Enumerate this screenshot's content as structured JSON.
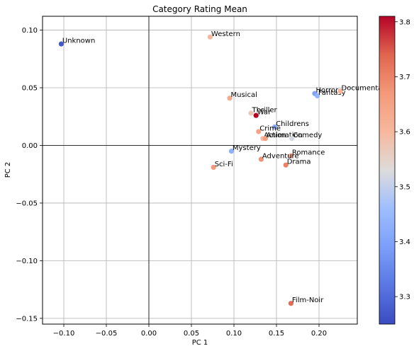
{
  "chart_data": {
    "type": "scatter",
    "title": "Category Rating Mean",
    "xlabel": "PC 1",
    "ylabel": "PC 2",
    "xlim": [
      -0.125,
      0.245
    ],
    "ylim": [
      -0.155,
      0.112
    ],
    "xticks": [
      -0.1,
      -0.05,
      0.0,
      0.05,
      0.1,
      0.15,
      0.2
    ],
    "xtick_labels": [
      "−0.10",
      "−0.05",
      "0.00",
      "0.05",
      "0.10",
      "0.15",
      "0.20"
    ],
    "yticks": [
      0.1,
      0.05,
      0.0,
      -0.05,
      -0.1,
      -0.15
    ],
    "ytick_labels": [
      "0.10",
      "0.05",
      "0.00",
      "−0.05",
      "−0.10",
      "−0.15"
    ],
    "grid": true,
    "colorbar": {
      "colormap": "coolwarm",
      "min": 3.25,
      "max": 3.81,
      "ticks": [
        3.3,
        3.4,
        3.5,
        3.6,
        3.7,
        3.8
      ],
      "tick_labels": [
        "3.3",
        "3.4",
        "3.5",
        "3.6",
        "3.7",
        "3.8"
      ]
    },
    "points": [
      {
        "label": "Unknown",
        "x": -0.103,
        "y": 0.088,
        "value": 3.27
      },
      {
        "label": "Western",
        "x": 0.072,
        "y": 0.094,
        "value": 3.6
      },
      {
        "label": "Musical",
        "x": 0.095,
        "y": 0.041,
        "value": 3.63
      },
      {
        "label": "Thriller",
        "x": 0.12,
        "y": 0.028,
        "value": 3.57
      },
      {
        "label": "War",
        "x": 0.126,
        "y": 0.026,
        "value": 3.81
      },
      {
        "label": "Childrens",
        "x": 0.148,
        "y": 0.016,
        "value": 3.42
      },
      {
        "label": "Crime",
        "x": 0.129,
        "y": 0.012,
        "value": 3.65
      },
      {
        "label": "Action",
        "x": 0.134,
        "y": 0.006,
        "value": 3.59
      },
      {
        "label": "Animation",
        "x": 0.137,
        "y": 0.006,
        "value": 3.66
      },
      {
        "label": "Comedy",
        "x": 0.168,
        "y": 0.006,
        "value": 3.52
      },
      {
        "label": "Horror",
        "x": 0.195,
        "y": 0.045,
        "value": 3.4
      },
      {
        "label": "Fantasy",
        "x": 0.198,
        "y": 0.043,
        "value": 3.44
      },
      {
        "label": "Documentary",
        "x": 0.225,
        "y": 0.047,
        "value": 3.61
      },
      {
        "label": "Mystery",
        "x": 0.097,
        "y": -0.005,
        "value": 3.43
      },
      {
        "label": "Romance",
        "x": 0.167,
        "y": -0.009,
        "value": 3.66
      },
      {
        "label": "Adventure",
        "x": 0.132,
        "y": -0.012,
        "value": 3.68
      },
      {
        "label": "Drama",
        "x": 0.161,
        "y": -0.017,
        "value": 3.7
      },
      {
        "label": "Sci-Fi",
        "x": 0.076,
        "y": -0.019,
        "value": 3.67
      },
      {
        "label": "Film-Noir",
        "x": 0.167,
        "y": -0.137,
        "value": 3.73
      }
    ]
  }
}
